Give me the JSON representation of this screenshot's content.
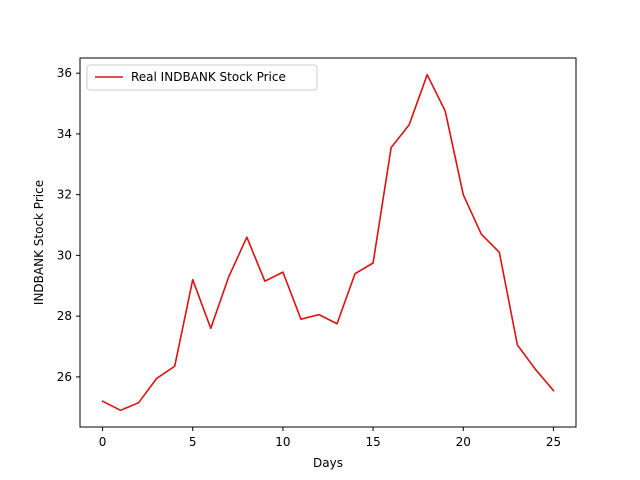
{
  "chart_data": {
    "type": "line",
    "title": "",
    "xlabel": "Days",
    "ylabel": "INDBANK Stock Price",
    "xlim": [
      -1.25,
      26.25
    ],
    "ylim": [
      24.35,
      36.5
    ],
    "xticks": [
      0,
      5,
      10,
      15,
      20,
      25
    ],
    "yticks": [
      26,
      28,
      30,
      32,
      34,
      36
    ],
    "grid": false,
    "legend_position": "upper-left",
    "series": [
      {
        "name": "Real INDBANK Stock Price",
        "color": "#dd1111",
        "x": [
          0,
          1,
          2,
          3,
          4,
          5,
          6,
          7,
          8,
          9,
          10,
          11,
          12,
          13,
          14,
          15,
          16,
          17,
          18,
          19,
          20,
          21,
          22,
          23,
          24,
          25
        ],
        "y": [
          25.2,
          24.9,
          25.15,
          25.95,
          26.35,
          29.2,
          27.6,
          29.3,
          30.6,
          29.15,
          29.45,
          27.9,
          28.05,
          27.75,
          29.4,
          29.75,
          33.55,
          34.3,
          35.95,
          34.75,
          32.0,
          30.7,
          30.1,
          27.05,
          26.25,
          25.55
        ]
      }
    ]
  }
}
